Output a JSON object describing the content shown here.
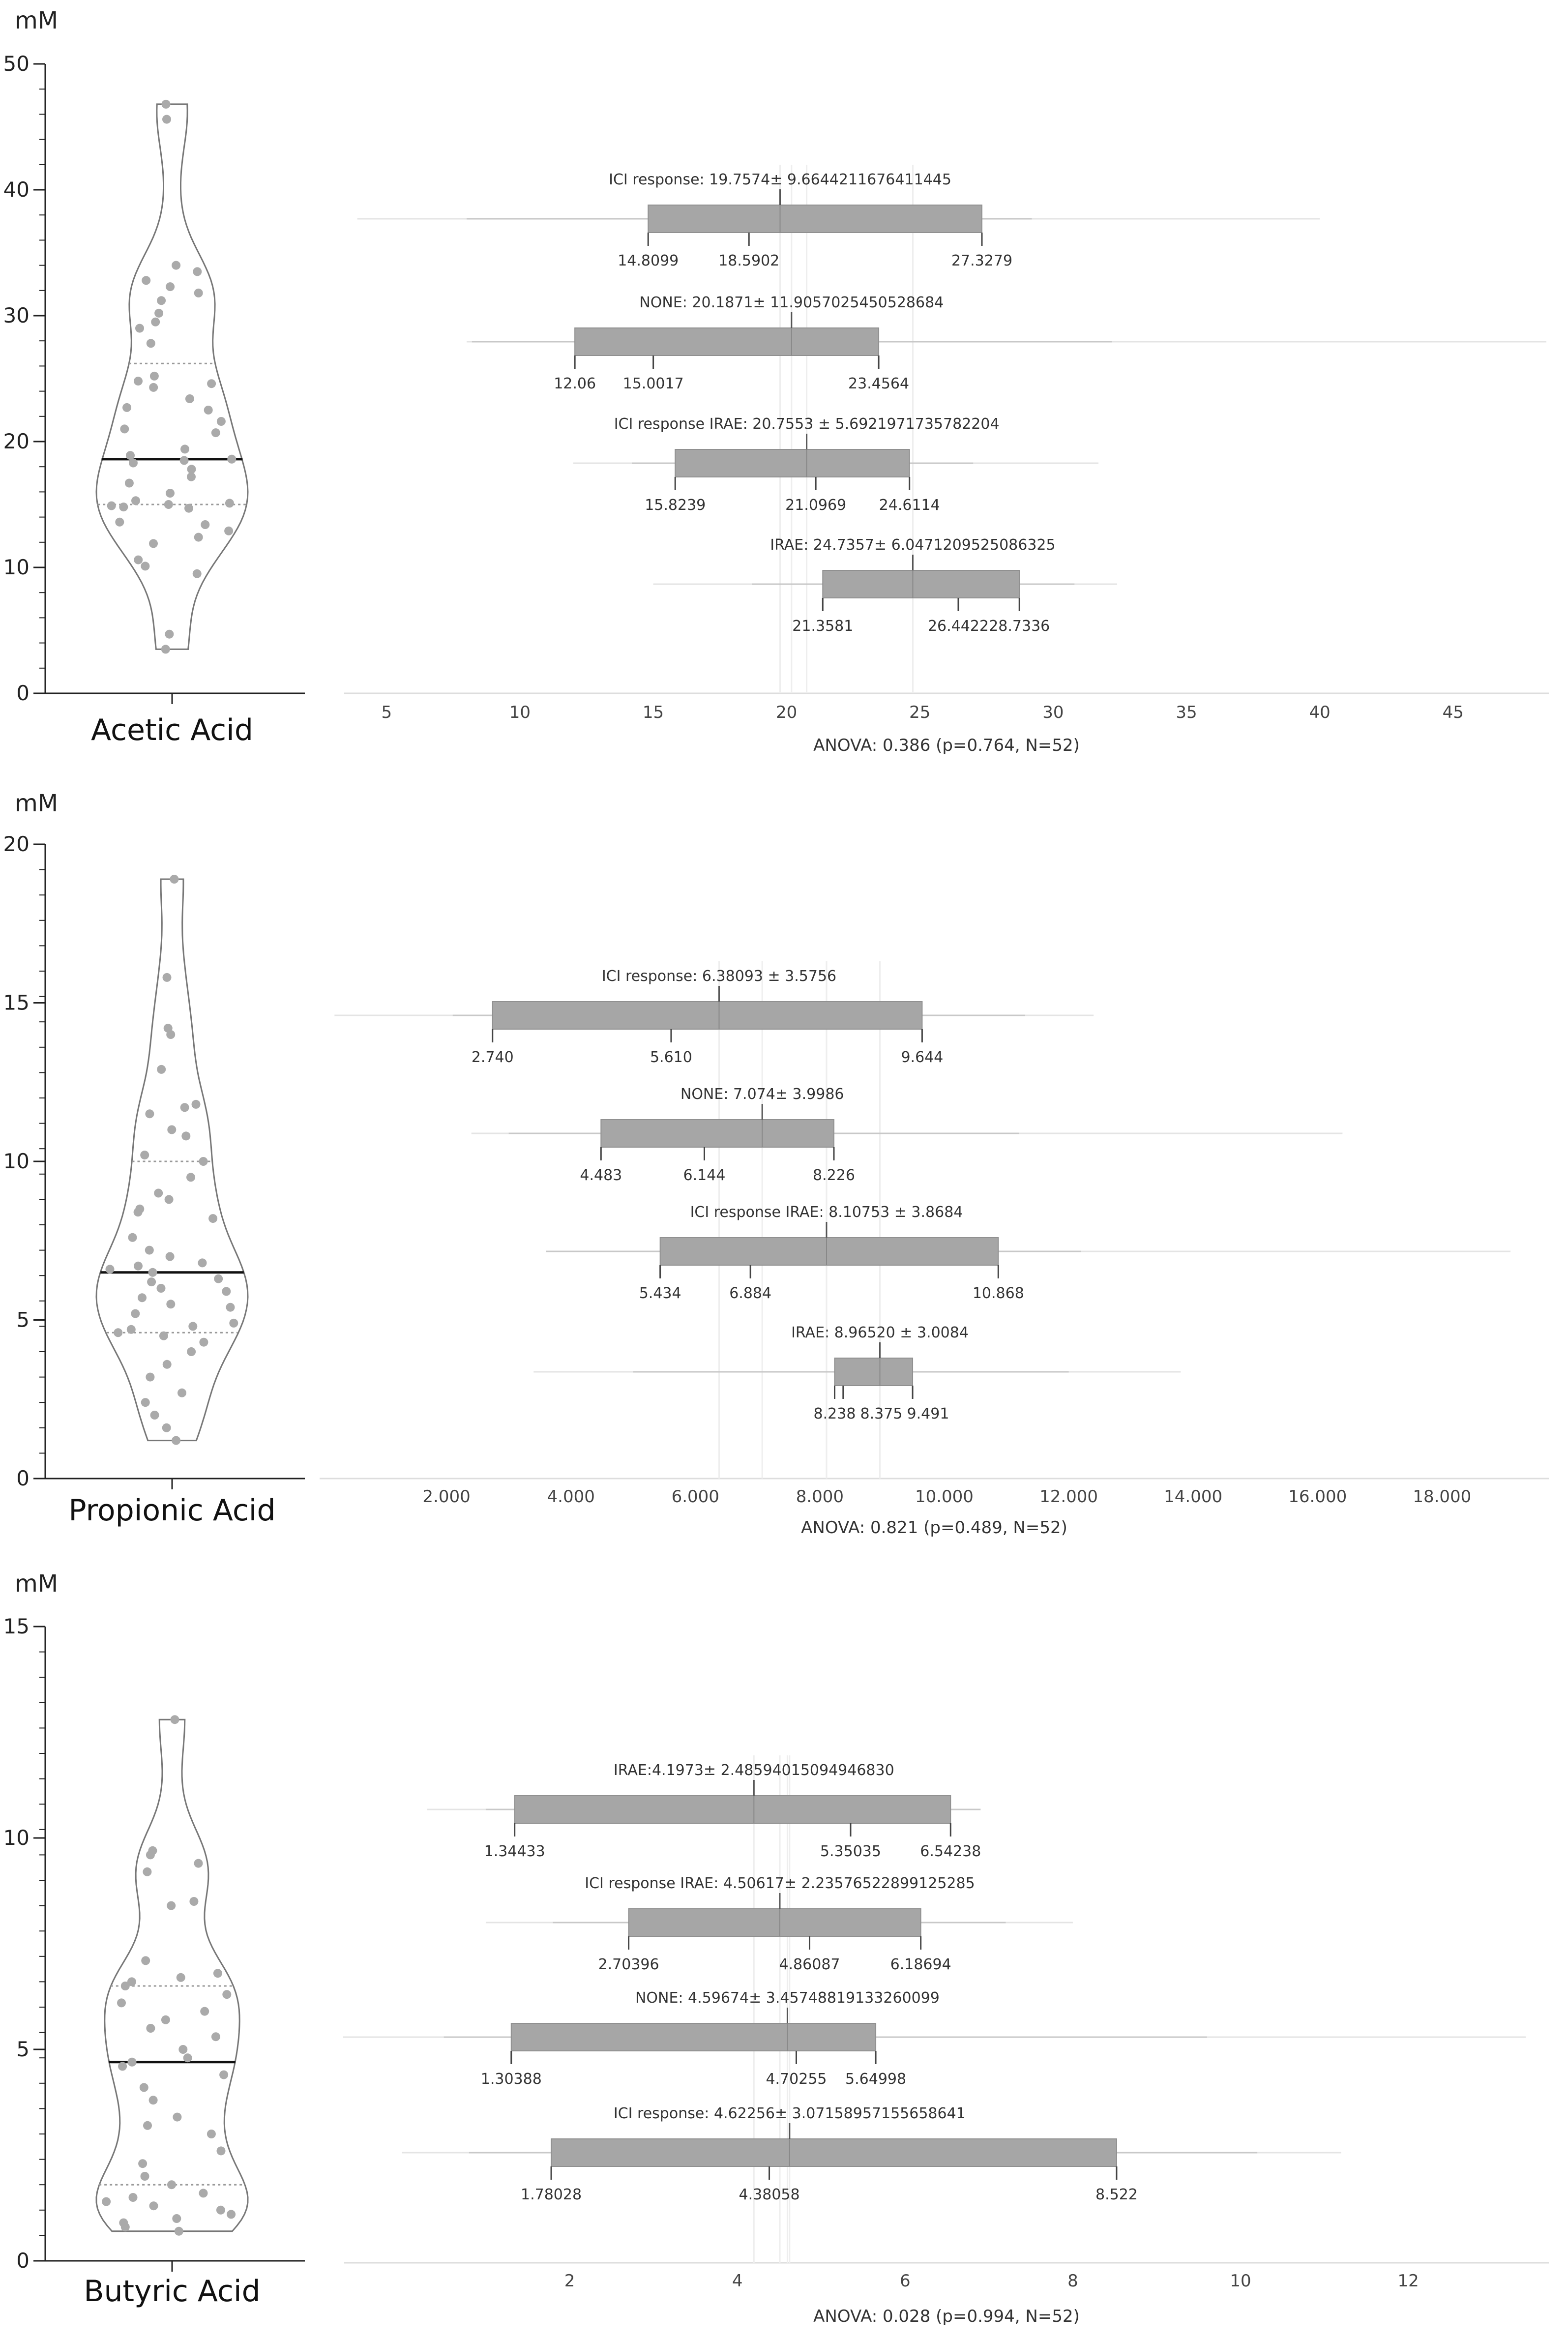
{
  "unit_label": "mM",
  "chart_data": [
    {
      "type": "violin",
      "title": "Acetic Acid",
      "ylabel": "mM",
      "ylim": [
        0,
        50
      ],
      "yticks": [
        0,
        10,
        20,
        30,
        40,
        50
      ],
      "median": 18.6,
      "quartiles": [
        15.0,
        26.2
      ],
      "points": [
        46.8,
        45.6,
        34.0,
        33.5,
        32.8,
        32.3,
        31.8,
        31.2,
        30.2,
        29.5,
        29.0,
        27.8,
        25.2,
        24.8,
        24.6,
        24.3,
        23.4,
        22.7,
        22.5,
        21.6,
        21.0,
        20.7,
        19.4,
        18.9,
        18.6,
        18.5,
        18.3,
        17.8,
        17.2,
        16.7,
        15.9,
        15.3,
        15.1,
        15.0,
        14.9,
        14.8,
        14.7,
        13.6,
        13.4,
        12.9,
        12.4,
        11.9,
        10.6,
        10.1,
        9.5,
        4.7,
        3.5
      ]
    },
    {
      "type": "box_summary",
      "xticks": [
        5,
        10,
        15,
        20,
        25,
        30,
        35,
        40,
        45
      ],
      "xlim": [
        3.5,
        48.5
      ],
      "footer": "ANOVA: 0.386 (p=0.764, N=52)",
      "groups": [
        {
          "label": "ICI response:  19.7574± 9.6644211676411445",
          "mean": 19.7574,
          "sd": 9.6644,
          "q1": 14.8099,
          "median": 18.5902,
          "q3": 27.3279,
          "whisker": [
            8.0,
            29.2
          ],
          "range": [
            3.9,
            40.0
          ],
          "tick_labels": [
            "14.8099",
            "18.5902",
            "27.3279"
          ]
        },
        {
          "label": "NONE: 20.1871± 11.9057025450528684",
          "mean": 20.1871,
          "sd": 11.9057,
          "q1": 12.06,
          "median": 15.0017,
          "q3": 23.4564,
          "whisker": [
            8.2,
            32.2
          ],
          "range": [
            8.0,
            48.5
          ],
          "tick_labels": [
            "12.06",
            "15.0017",
            "23.4564"
          ]
        },
        {
          "label": "ICI response IRAE:  20.7553 ± 5.6921971735782204",
          "mean": 20.7553,
          "sd": 5.6922,
          "q1": 15.8239,
          "median": 21.0969,
          "q3": 24.6114,
          "whisker": [
            14.2,
            27.0
          ],
          "range": [
            12.0,
            31.7
          ],
          "tick_labels": [
            "15.8239",
            "21.0969",
            "24.6114"
          ]
        },
        {
          "label": "IRAE:  24.7357± 6.0471209525086325",
          "mean": 24.7357,
          "sd": 6.0471,
          "q1": 21.3581,
          "median": 26.4422,
          "q3": 28.7336,
          "whisker": [
            18.7,
            30.8
          ],
          "range": [
            15.0,
            32.4
          ],
          "tick_labels": [
            "21.3581",
            "26.4422",
            "28.7336"
          ]
        }
      ]
    },
    {
      "type": "violin",
      "title": "Propionic Acid",
      "ylabel": "mM",
      "ylim": [
        0,
        20
      ],
      "yticks": [
        0,
        5,
        10,
        15,
        20
      ],
      "median": 6.5,
      "quartiles": [
        4.6,
        10.0
      ],
      "points": [
        18.9,
        15.8,
        14.2,
        14.0,
        12.9,
        11.8,
        11.7,
        11.5,
        11.0,
        10.8,
        10.2,
        10.0,
        9.5,
        9.0,
        8.8,
        8.5,
        8.4,
        8.2,
        7.6,
        7.2,
        7.0,
        6.8,
        6.7,
        6.6,
        6.5,
        6.3,
        6.2,
        6.0,
        5.9,
        5.7,
        5.5,
        5.4,
        5.2,
        4.9,
        4.8,
        4.7,
        4.6,
        4.5,
        4.3,
        4.0,
        3.6,
        3.2,
        2.7,
        2.4,
        2.0,
        1.6,
        1.2
      ]
    },
    {
      "type": "box_summary",
      "xticks": [
        "2.000",
        "4.000",
        "6.000",
        "8.000",
        "10.000",
        "12.000",
        "14.000",
        "16.000",
        "18.000"
      ],
      "xvalues": [
        2,
        4,
        6,
        8,
        10,
        12,
        14,
        16,
        18
      ],
      "xlim": [
        0.0,
        19.4
      ],
      "footer": "ANOVA: 0.821 (p=0.489, N=52)",
      "groups": [
        {
          "label": "ICI response:  6.38093 ± 3.5756",
          "mean": 6.38093,
          "sd": 3.5756,
          "q1": 2.74,
          "median": 5.61,
          "q3": 9.644,
          "whisker": [
            2.1,
            11.3
          ],
          "range": [
            0.2,
            12.4
          ],
          "tick_labels": [
            "2.740",
            "5.610",
            "9.644"
          ]
        },
        {
          "label": "NONE: 7.074± 3.9986",
          "mean": 7.074,
          "sd": 3.9986,
          "q1": 4.483,
          "median": 6.144,
          "q3": 8.226,
          "whisker": [
            3.0,
            11.2
          ],
          "range": [
            2.4,
            16.4
          ],
          "tick_labels": [
            "4.483",
            "6.144",
            "8.226"
          ]
        },
        {
          "label": "ICI response IRAE:  8.10753 ± 3.8684",
          "mean": 8.10753,
          "sd": 3.8684,
          "q1": 5.434,
          "median": 6.884,
          "q3": 10.868,
          "whisker": [
            3.6,
            12.2
          ],
          "range": [
            3.6,
            19.1
          ],
          "tick_labels": [
            "5.434",
            "6.884",
            "10.868"
          ]
        },
        {
          "label": "IRAE:  8.96520 ± 3.0084",
          "mean": 8.9652,
          "sd": 3.0084,
          "q1": 8.238,
          "median": 8.375,
          "q3": 9.491,
          "whisker": [
            5.0,
            12.0
          ],
          "range": [
            3.4,
            13.8
          ],
          "tick_labels": [
            "8.238",
            "8.375",
            "9.491"
          ]
        }
      ]
    },
    {
      "type": "violin",
      "title": "Butyric Acid",
      "ylabel": "mM",
      "ylim": [
        0,
        15
      ],
      "yticks": [
        0,
        5,
        10,
        15
      ],
      "median": 4.7,
      "quartiles": [
        1.8,
        6.5
      ],
      "points": [
        12.8,
        9.7,
        9.6,
        9.4,
        9.2,
        8.5,
        8.4,
        7.1,
        6.8,
        6.7,
        6.6,
        6.5,
        6.3,
        6.1,
        5.9,
        5.7,
        5.5,
        5.3,
        5.0,
        4.8,
        4.7,
        4.6,
        4.4,
        4.1,
        3.8,
        3.4,
        3.2,
        3.0,
        2.6,
        2.3,
        2.0,
        1.8,
        1.6,
        1.5,
        1.4,
        1.3,
        1.2,
        1.1,
        1.0,
        0.9,
        0.8,
        0.7
      ]
    },
    {
      "type": "box_summary",
      "xticks": [
        2,
        4,
        6,
        8,
        10,
        12
      ],
      "xlim": [
        -0.7,
        13.5
      ],
      "footer": "ANOVA: 0.028 (p=0.994, N=52)",
      "groups": [
        {
          "label": "IRAE:4.1973± 2.48594015094946830",
          "mean": 4.1973,
          "sd": 2.4859,
          "q1": 1.34433,
          "median": 5.35035,
          "q3": 6.54238,
          "whisker": [
            1.0,
            6.9
          ],
          "range": [
            0.3,
            6.9
          ],
          "tick_labels": [
            "1.34433",
            "5.35035",
            "6.54238"
          ]
        },
        {
          "label": "ICI response IRAE:  4.50617± 2.23576522899125285",
          "mean": 4.50617,
          "sd": 2.2358,
          "q1": 2.70396,
          "median": 4.86087,
          "q3": 6.18694,
          "whisker": [
            1.8,
            7.2
          ],
          "range": [
            1.0,
            8.0
          ],
          "tick_labels": [
            "2.70396",
            "4.86087",
            "6.18694"
          ]
        },
        {
          "label": "NONE: 4.59674± 3.45748819133260099",
          "mean": 4.59674,
          "sd": 3.4575,
          "q1": 1.30388,
          "median": 4.70255,
          "q3": 5.64998,
          "whisker": [
            0.5,
            9.6
          ],
          "range": [
            -0.7,
            13.4
          ],
          "tick_labels": [
            "1.30388",
            "4.70255",
            "5.64998"
          ]
        },
        {
          "label": "ICI response:  4.62256± 3.07158957155658641",
          "mean": 4.62256,
          "sd": 3.0716,
          "q1": 1.78028,
          "median": 4.38058,
          "q3": 8.522,
          "whisker": [
            0.8,
            10.2
          ],
          "range": [
            0.0,
            11.2
          ],
          "tick_labels": [
            "1.78028",
            "4.38058",
            "8.522"
          ]
        }
      ]
    }
  ]
}
